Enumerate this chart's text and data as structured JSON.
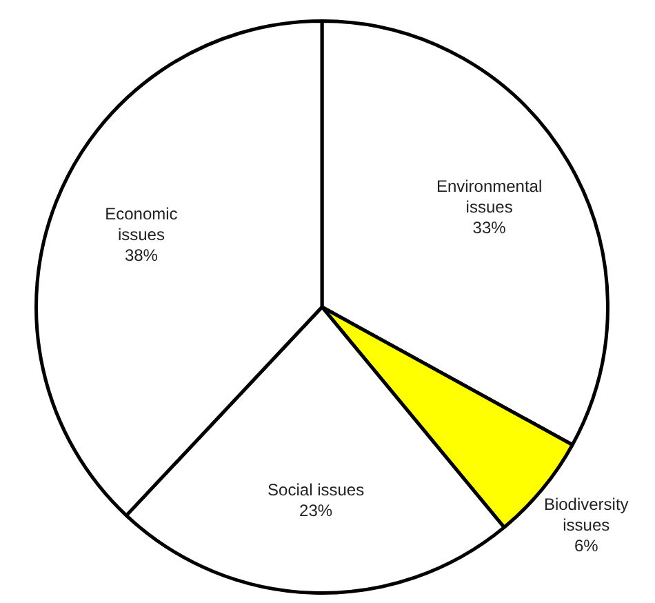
{
  "chart_data": {
    "type": "pie",
    "categories": [
      "Environmental issues",
      "Biodiversity issues",
      "Social issues",
      "Economic issues"
    ],
    "values": [
      33,
      6,
      23,
      38
    ],
    "value_labels": [
      "33%",
      "6%",
      "23%",
      "38%"
    ],
    "colors": [
      "#ffffff",
      "#ffff00",
      "#ffffff",
      "#ffffff"
    ],
    "legend": false
  }
}
